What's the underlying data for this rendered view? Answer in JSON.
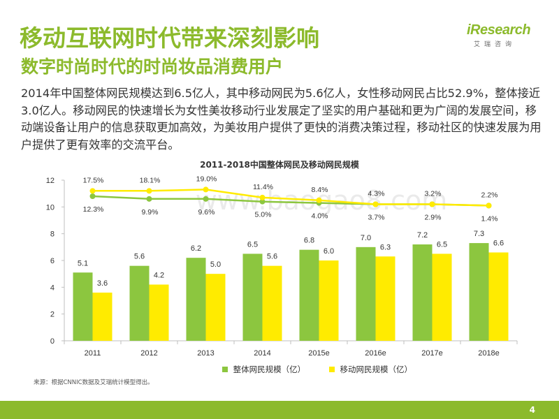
{
  "header": {
    "title": "移动互联网时代带来深刻影响",
    "subtitle": "数字时尚时代的时尚妆品消费用户",
    "logo": {
      "brand": "iResearch",
      "brand_cn": "艾瑞咨询",
      "color": "#8cba2c"
    }
  },
  "body": {
    "paragraph": "2014年中国整体网民规模达到6.5亿人，其中移动网民为5.6亿人，女性移动网民占比52.9%，整体接近3.0亿人。移动网民的快速增长为女性美妆移动行业发展定了坚实的用户基础和更为广阔的发展空间，移动端设备让用户的信息获取更加高效，为美妆用户提供了更快的消费决策过程，移动社区的快速发展为用户提供了更有效率的交流平台。"
  },
  "chart_data": {
    "type": "bar",
    "title": "2011-2018中国整体网民及移动网民规模",
    "categories": [
      "2011",
      "2012",
      "2013",
      "2014",
      "2015e",
      "2016e",
      "2017e",
      "2018e"
    ],
    "series": [
      {
        "name": "整体网民规模（亿）",
        "type": "bar",
        "color": "#8cc63f",
        "values": [
          5.1,
          5.6,
          6.2,
          6.5,
          6.8,
          7.0,
          7.2,
          7.3
        ],
        "labels": [
          "5.1",
          "5.6",
          "6.2",
          "6.5",
          "6.8",
          "7.0",
          "7.2",
          "7.3"
        ]
      },
      {
        "name": "移动网民规模（亿）",
        "type": "bar",
        "color": "#ffeb00",
        "values": [
          3.6,
          4.2,
          5.0,
          5.6,
          6.0,
          6.3,
          6.5,
          6.6
        ],
        "labels": [
          "3.6",
          "4.2",
          "5.0",
          "5.6",
          "6.0",
          "6.3",
          "6.5",
          "6.6"
        ]
      },
      {
        "type": "line",
        "color": "#8cc63f",
        "values": [
          10.8,
          10.6,
          10.6,
          10.4,
          10.3,
          10.2,
          10.2,
          10.1
        ],
        "labels": [
          "12.3%",
          "9.9%",
          "9.6%",
          "5.0%",
          "4.0%",
          "3.7%",
          "2.9%",
          "1.4%"
        ]
      },
      {
        "type": "line",
        "color": "#ffeb00",
        "values": [
          11.2,
          11.2,
          11.3,
          10.7,
          10.5,
          10.2,
          10.2,
          10.1
        ],
        "labels": [
          "17.5%",
          "18.1%",
          "19.0%",
          "11.4%",
          "8.4%",
          "4.3%",
          "3.2%",
          "2.2%"
        ]
      }
    ],
    "yticks": [
      0,
      2,
      4,
      6,
      8,
      10,
      12
    ],
    "ylim": [
      0,
      12
    ],
    "grid": false,
    "legend": "bottom"
  },
  "source": "来源：根据CNNIC数据及艾瑞统计模型得出。",
  "footer": {
    "page_number": "4",
    "bar_color": "#8cba2c"
  },
  "watermark": "www.baogao8.com"
}
